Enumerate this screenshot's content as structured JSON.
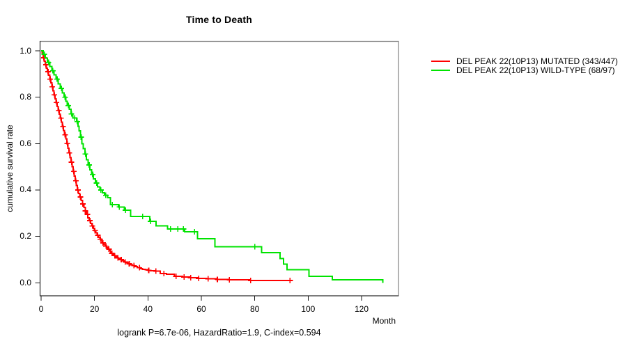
{
  "header": {
    "title": "Time to Death"
  },
  "axes": {
    "y_label": "cumulative survival rate",
    "x_label": "Month"
  },
  "caption": {
    "text": "logrank P=6.7e-06, HazardRatio=1.9, C-index=0.594"
  },
  "legend": {
    "items": [
      {
        "label": "DEL PEAK 22(10P13) MUTATED (343/447)",
        "color": "#ff0000"
      },
      {
        "label": "DEL PEAK 22(10P13) WILD-TYPE (68/97)",
        "color": "#00e300"
      }
    ]
  },
  "chart_data": {
    "type": "line",
    "subtype": "kaplan-meier-step",
    "title": "Time to Death",
    "xlabel": "Month",
    "ylabel": "cumulative survival rate",
    "xlim": [
      0,
      134
    ],
    "ylim": [
      0,
      1.0
    ],
    "xticks": [
      0,
      20,
      40,
      60,
      80,
      100,
      120
    ],
    "yticks": [
      0.0,
      0.2,
      0.4,
      0.6,
      0.8,
      1.0
    ],
    "grid": false,
    "legend_position": "right-outside-top",
    "series": [
      {
        "name": "DEL PEAK 22(10P13) MUTATED (343/447)",
        "color": "#ff0000",
        "points": [
          [
            0,
            1.0
          ],
          [
            0.4,
            0.985
          ],
          [
            0.8,
            0.97
          ],
          [
            1.2,
            0.955
          ],
          [
            1.6,
            0.94
          ],
          [
            2,
            0.925
          ],
          [
            2.4,
            0.91
          ],
          [
            2.8,
            0.895
          ],
          [
            3.2,
            0.878
          ],
          [
            3.6,
            0.862
          ],
          [
            4,
            0.845
          ],
          [
            4.4,
            0.828
          ],
          [
            4.8,
            0.81
          ],
          [
            5.2,
            0.793
          ],
          [
            5.6,
            0.777
          ],
          [
            6,
            0.76
          ],
          [
            6.4,
            0.743
          ],
          [
            6.8,
            0.727
          ],
          [
            7.2,
            0.71
          ],
          [
            7.6,
            0.692
          ],
          [
            8,
            0.674
          ],
          [
            8.4,
            0.656
          ],
          [
            8.8,
            0.638
          ],
          [
            9.2,
            0.62
          ],
          [
            9.6,
            0.6
          ],
          [
            10,
            0.58
          ],
          [
            10.4,
            0.56
          ],
          [
            10.8,
            0.54
          ],
          [
            11.2,
            0.52
          ],
          [
            11.6,
            0.5
          ],
          [
            12,
            0.48
          ],
          [
            12.4,
            0.46
          ],
          [
            12.8,
            0.44
          ],
          [
            13.2,
            0.42
          ],
          [
            13.6,
            0.4
          ],
          [
            14,
            0.385
          ],
          [
            14.5,
            0.37
          ],
          [
            15,
            0.355
          ],
          [
            15.5,
            0.34
          ],
          [
            16,
            0.325
          ],
          [
            16.5,
            0.31
          ],
          [
            17,
            0.295
          ],
          [
            17.5,
            0.28
          ],
          [
            18,
            0.268
          ],
          [
            18.5,
            0.256
          ],
          [
            19,
            0.245
          ],
          [
            19.5,
            0.235
          ],
          [
            20,
            0.225
          ],
          [
            20.5,
            0.215
          ],
          [
            21,
            0.205
          ],
          [
            21.5,
            0.196
          ],
          [
            22,
            0.188
          ],
          [
            22.5,
            0.18
          ],
          [
            23,
            0.172
          ],
          [
            23.5,
            0.165
          ],
          [
            24,
            0.158
          ],
          [
            24.5,
            0.151
          ],
          [
            25,
            0.145
          ],
          [
            25.5,
            0.139
          ],
          [
            26,
            0.133
          ],
          [
            26.5,
            0.127
          ],
          [
            27,
            0.122
          ],
          [
            27.5,
            0.117
          ],
          [
            28,
            0.112
          ],
          [
            28.5,
            0.107
          ],
          [
            29,
            0.103
          ],
          [
            29.5,
            0.1
          ],
          [
            30.2,
            0.095
          ],
          [
            31,
            0.09
          ],
          [
            31.8,
            0.086
          ],
          [
            32.6,
            0.082
          ],
          [
            33.4,
            0.078
          ],
          [
            34.2,
            0.074
          ],
          [
            35,
            0.07
          ],
          [
            36,
            0.065
          ],
          [
            37,
            0.061
          ],
          [
            38,
            0.058
          ],
          [
            39,
            0.056
          ],
          [
            40,
            0.054
          ],
          [
            41,
            0.052
          ],
          [
            42.5,
            0.05
          ],
          [
            44.6,
            0.04
          ],
          [
            47,
            0.037
          ],
          [
            50,
            0.028
          ],
          [
            53,
            0.025
          ],
          [
            56,
            0.022
          ],
          [
            59,
            0.019
          ],
          [
            62,
            0.017
          ],
          [
            65.5,
            0.015
          ],
          [
            70,
            0.013
          ],
          [
            78.2,
            0.01
          ],
          [
            93.2,
            0.01
          ]
        ],
        "censor_times": [
          1,
          1.8,
          2.6,
          3.4,
          4.2,
          5,
          5.8,
          6.6,
          7.4,
          8.2,
          9,
          9.8,
          10.6,
          11.4,
          12.2,
          13,
          13.8,
          14.7,
          15.6,
          16.5,
          17.4,
          18.3,
          19.2,
          20.2,
          21.2,
          22.2,
          23.2,
          24.3,
          25.4,
          26.5,
          27.6,
          28.8,
          30,
          31.5,
          33,
          34.8,
          36.8,
          40.3,
          43,
          46,
          50.5,
          53.5,
          56,
          59,
          62.5,
          66,
          70.5,
          78.5,
          93.2
        ]
      },
      {
        "name": "DEL PEAK 22(10P13) WILD-TYPE (68/97)",
        "color": "#00e300",
        "points": [
          [
            0,
            1.0
          ],
          [
            0.8,
            0.985
          ],
          [
            1.6,
            0.968
          ],
          [
            2.4,
            0.95
          ],
          [
            3.2,
            0.932
          ],
          [
            4,
            0.914
          ],
          [
            4.8,
            0.896
          ],
          [
            5.6,
            0.878
          ],
          [
            6.4,
            0.858
          ],
          [
            7.2,
            0.838
          ],
          [
            8,
            0.818
          ],
          [
            8.6,
            0.8
          ],
          [
            9.2,
            0.782
          ],
          [
            9.8,
            0.764
          ],
          [
            10.5,
            0.748
          ],
          [
            11.2,
            0.728
          ],
          [
            11.9,
            0.71
          ],
          [
            13.3,
            0.695
          ],
          [
            13.8,
            0.675
          ],
          [
            14.2,
            0.655
          ],
          [
            14.7,
            0.628
          ],
          [
            15.2,
            0.6
          ],
          [
            15.8,
            0.578
          ],
          [
            16.4,
            0.555
          ],
          [
            17,
            0.53
          ],
          [
            17.6,
            0.508
          ],
          [
            18.2,
            0.487
          ],
          [
            18.9,
            0.467
          ],
          [
            19.6,
            0.448
          ],
          [
            20.4,
            0.43
          ],
          [
            21.1,
            0.413
          ],
          [
            22,
            0.4
          ],
          [
            22.9,
            0.388
          ],
          [
            23.8,
            0.377
          ],
          [
            24.9,
            0.367
          ],
          [
            26,
            0.337
          ],
          [
            29,
            0.327
          ],
          [
            31.2,
            0.313
          ],
          [
            33.5,
            0.286
          ],
          [
            40.7,
            0.265
          ],
          [
            43.1,
            0.246
          ],
          [
            47.3,
            0.232
          ],
          [
            53.8,
            0.22
          ],
          [
            58.6,
            0.19
          ],
          [
            65.1,
            0.156
          ],
          [
            82.5,
            0.13
          ],
          [
            89.5,
            0.105
          ],
          [
            90.8,
            0.08
          ],
          [
            92.1,
            0.057
          ],
          [
            100.3,
            0.028
          ],
          [
            109,
            0.013
          ],
          [
            128,
            0.0
          ]
        ],
        "censor_times": [
          1.2,
          2.8,
          4.4,
          6,
          7.6,
          9,
          10.2,
          11.4,
          12.6,
          13.5,
          15,
          16.6,
          18,
          19.3,
          20.8,
          22.4,
          24.2,
          26.7,
          29.3,
          31.6,
          38,
          41,
          48.5,
          51.2,
          53.3,
          57.5,
          80
        ]
      }
    ]
  },
  "style": {
    "box_color": "#8a8a8a",
    "axis_color": "#1a1a1a",
    "text_color": "#000000"
  }
}
